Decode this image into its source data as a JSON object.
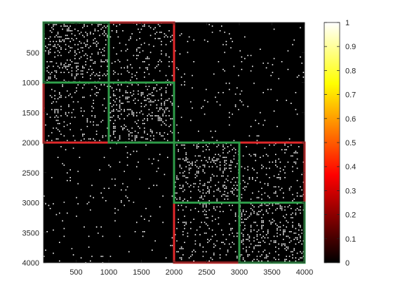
{
  "chart_data": {
    "type": "heatmap",
    "title": "",
    "xlabel": "",
    "ylabel": "",
    "xlim": [
      0,
      4000
    ],
    "ylim": [
      0,
      4000
    ],
    "y_reversed": true,
    "x_ticks": [
      500,
      1000,
      1500,
      2000,
      2500,
      3000,
      3500,
      4000
    ],
    "x_tick_labels": [
      "500",
      "1000",
      "1500",
      "2000",
      "2500",
      "3000",
      "3500",
      "4000"
    ],
    "y_ticks": [
      500,
      1000,
      1500,
      2000,
      2500,
      3000,
      3500,
      4000
    ],
    "y_tick_labels": [
      "500",
      "1000",
      "1500",
      "2000",
      "2500",
      "3000",
      "3500",
      "4000"
    ],
    "colormap": "hot",
    "colorbar": {
      "limits": [
        0,
        1
      ],
      "ticks": [
        0,
        0.1,
        0.2,
        0.3,
        0.4,
        0.5,
        0.6,
        0.7,
        0.8,
        0.9,
        1
      ],
      "tick_labels": [
        "0",
        "0.1",
        "0.2",
        "0.3",
        "0.4",
        "0.5",
        "0.6",
        "0.7",
        "0.8",
        "0.9",
        "1"
      ],
      "location": "right"
    },
    "block_densities": {
      "block_edges": [
        0,
        1000,
        2000,
        3000,
        4000
      ],
      "matrix": [
        [
          0.55,
          0.25,
          0.06,
          0.06
        ],
        [
          0.25,
          0.55,
          0.06,
          0.06
        ],
        [
          0.06,
          0.06,
          0.55,
          0.25
        ],
        [
          0.06,
          0.06,
          0.25,
          0.55
        ]
      ]
    },
    "outer_boxes": {
      "color": "#e0282a",
      "regions": [
        {
          "x": [
            0,
            2000
          ],
          "y": [
            0,
            2000
          ]
        },
        {
          "x": [
            2000,
            4000
          ],
          "y": [
            2000,
            4000
          ]
        }
      ]
    },
    "inner_boxes": {
      "color": "#2e9b48",
      "regions": [
        {
          "x": [
            0,
            1000
          ],
          "y": [
            0,
            1000
          ]
        },
        {
          "x": [
            1000,
            2000
          ],
          "y": [
            1000,
            2000
          ]
        },
        {
          "x": [
            2000,
            3000
          ],
          "y": [
            2000,
            3000
          ]
        },
        {
          "x": [
            3000,
            4000
          ],
          "y": [
            3000,
            4000
          ]
        }
      ]
    },
    "grid": false
  }
}
